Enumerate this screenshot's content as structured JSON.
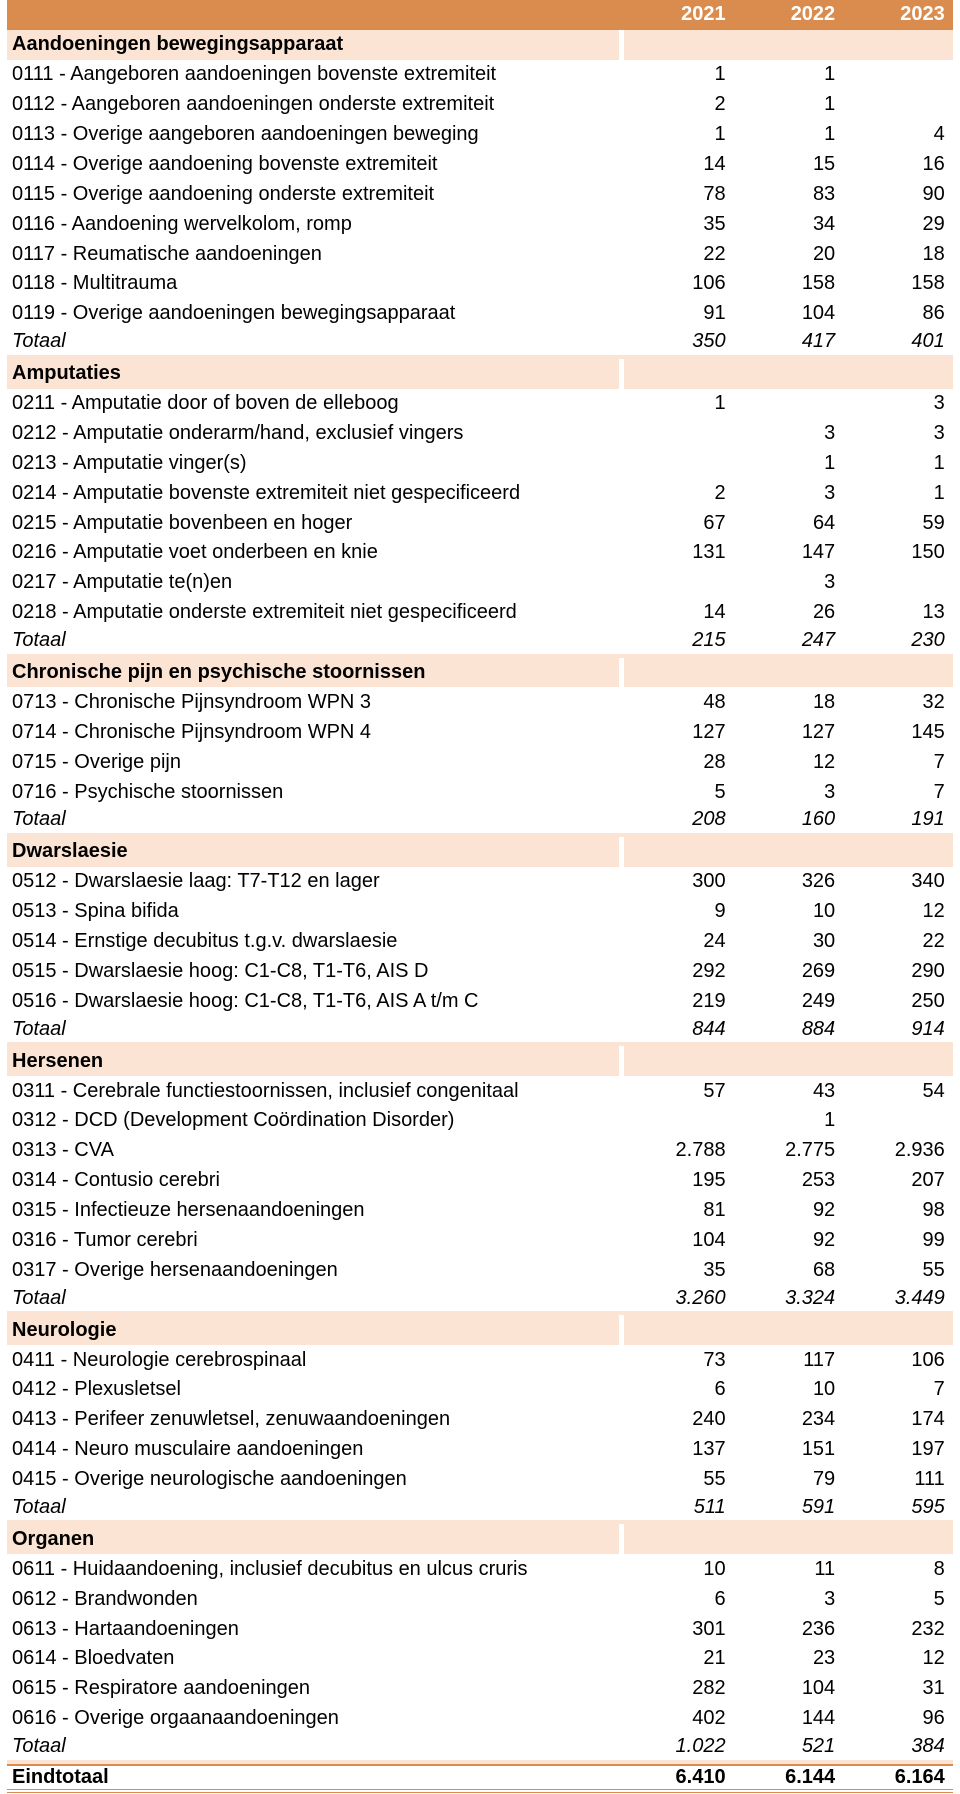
{
  "table": {
    "columns": [
      "2021",
      "2022",
      "2023"
    ],
    "sections": [
      {
        "title": "Aandoeningen bewegingsapparaat",
        "rows": [
          {
            "label": "0111 - Aangeboren aandoeningen bovenste extremiteit",
            "values": [
              "1",
              "1",
              null
            ]
          },
          {
            "label": "0112 - Aangeboren aandoeningen onderste extremiteit",
            "values": [
              "2",
              "1",
              null
            ]
          },
          {
            "label": "0113 - Overige aangeboren aandoeningen beweging",
            "values": [
              "1",
              "1",
              "4"
            ]
          },
          {
            "label": "0114 - Overige aandoening bovenste extremiteit",
            "values": [
              "14",
              "15",
              "16"
            ]
          },
          {
            "label": "0115 - Overige aandoening onderste extremiteit",
            "values": [
              "78",
              "83",
              "90"
            ]
          },
          {
            "label": "0116 - Aandoening wervelkolom, romp",
            "values": [
              "35",
              "34",
              "29"
            ]
          },
          {
            "label": "0117 - Reumatische aandoeningen",
            "values": [
              "22",
              "20",
              "18"
            ]
          },
          {
            "label": "0118 - Multitrauma",
            "values": [
              "106",
              "158",
              "158"
            ]
          },
          {
            "label": "0119 - Overige aandoeningen bewegingsapparaat",
            "values": [
              "91",
              "104",
              "86"
            ]
          }
        ],
        "total": {
          "label": "Totaal",
          "values": [
            "350",
            "417",
            "401"
          ]
        }
      },
      {
        "title": "Amputaties",
        "rows": [
          {
            "label": "0211 - Amputatie door of boven de elleboog",
            "values": [
              "1",
              null,
              "3"
            ]
          },
          {
            "label": "0212 - Amputatie onderarm/hand, exclusief vingers",
            "values": [
              null,
              "3",
              "3"
            ]
          },
          {
            "label": "0213 - Amputatie vinger(s)",
            "values": [
              null,
              "1",
              "1"
            ]
          },
          {
            "label": "0214 - Amputatie bovenste extremiteit niet gespecificeerd",
            "values": [
              "2",
              "3",
              "1"
            ]
          },
          {
            "label": "0215 - Amputatie bovenbeen en hoger",
            "values": [
              "67",
              "64",
              "59"
            ]
          },
          {
            "label": "0216 - Amputatie voet onderbeen en knie",
            "values": [
              "131",
              "147",
              "150"
            ]
          },
          {
            "label": "0217 - Amputatie te(n)en",
            "values": [
              null,
              "3",
              null
            ]
          },
          {
            "label": "0218 - Amputatie onderste extremiteit niet gespecificeerd",
            "values": [
              "14",
              "26",
              "13"
            ]
          }
        ],
        "total": {
          "label": "Totaal",
          "values": [
            "215",
            "247",
            "230"
          ]
        }
      },
      {
        "title": "Chronische pijn en psychische stoornissen",
        "rows": [
          {
            "label": "0713 - Chronische Pijnsyndroom WPN 3",
            "values": [
              "48",
              "18",
              "32"
            ]
          },
          {
            "label": "0714 - Chronische Pijnsyndroom WPN 4",
            "values": [
              "127",
              "127",
              "145"
            ]
          },
          {
            "label": "0715 - Overige pijn",
            "values": [
              "28",
              "12",
              "7"
            ]
          },
          {
            "label": "0716 - Psychische stoornissen",
            "values": [
              "5",
              "3",
              "7"
            ]
          }
        ],
        "total": {
          "label": "Totaal",
          "values": [
            "208",
            "160",
            "191"
          ]
        }
      },
      {
        "title": "Dwarslaesie",
        "rows": [
          {
            "label": "0512 - Dwarslaesie laag: T7-T12 en lager",
            "values": [
              "300",
              "326",
              "340"
            ]
          },
          {
            "label": "0513 - Spina bifida",
            "values": [
              "9",
              "10",
              "12"
            ]
          },
          {
            "label": "0514 - Ernstige decubitus t.g.v. dwarslaesie",
            "values": [
              "24",
              "30",
              "22"
            ]
          },
          {
            "label": "0515 - Dwarslaesie hoog: C1-C8, T1-T6, AIS D",
            "values": [
              "292",
              "269",
              "290"
            ]
          },
          {
            "label": "0516 - Dwarslaesie hoog: C1-C8, T1-T6, AIS A t/m C",
            "values": [
              "219",
              "249",
              "250"
            ]
          }
        ],
        "total": {
          "label": "Totaal",
          "values": [
            "844",
            "884",
            "914"
          ]
        }
      },
      {
        "title": "Hersenen",
        "rows": [
          {
            "label": "0311 - Cerebrale functiestoornissen, inclusief congenitaal",
            "values": [
              "57",
              "43",
              "54"
            ]
          },
          {
            "label": "0312 - DCD (Development Coördination Disorder)",
            "values": [
              null,
              "1",
              null
            ]
          },
          {
            "label": "0313 - CVA",
            "values": [
              "2.788",
              "2.775",
              "2.936"
            ]
          },
          {
            "label": "0314 - Contusio cerebri",
            "values": [
              "195",
              "253",
              "207"
            ]
          },
          {
            "label": "0315 - Infectieuze hersenaandoeningen",
            "values": [
              "81",
              "92",
              "98"
            ]
          },
          {
            "label": "0316 - Tumor cerebri",
            "values": [
              "104",
              "92",
              "99"
            ]
          },
          {
            "label": "0317 - Overige hersenaandoeningen",
            "values": [
              "35",
              "68",
              "55"
            ]
          }
        ],
        "total": {
          "label": "Totaal",
          "values": [
            "3.260",
            "3.324",
            "3.449"
          ]
        }
      },
      {
        "title": "Neurologie",
        "rows": [
          {
            "label": "0411 - Neurologie cerebrospinaal",
            "values": [
              "73",
              "117",
              "106"
            ]
          },
          {
            "label": "0412 - Plexusletsel",
            "values": [
              "6",
              "10",
              "7"
            ]
          },
          {
            "label": "0413 - Perifeer zenuwletsel, zenuwaandoeningen",
            "values": [
              "240",
              "234",
              "174"
            ]
          },
          {
            "label": "0414 - Neuro musculaire aandoeningen",
            "values": [
              "137",
              "151",
              "197"
            ]
          },
          {
            "label": "0415 - Overige neurologische aandoeningen",
            "values": [
              "55",
              "79",
              "111"
            ]
          }
        ],
        "total": {
          "label": "Totaal",
          "values": [
            "511",
            "591",
            "595"
          ]
        }
      },
      {
        "title": "Organen",
        "rows": [
          {
            "label": "0611 - Huidaandoening, inclusief decubitus en ulcus cruris",
            "values": [
              "10",
              "11",
              "8"
            ]
          },
          {
            "label": "0612 - Brandwonden",
            "values": [
              "6",
              "3",
              "5"
            ]
          },
          {
            "label": "0613 - Hartaandoeningen",
            "values": [
              "301",
              "236",
              "232"
            ]
          },
          {
            "label": "0614 - Bloedvaten",
            "values": [
              "21",
              "23",
              "12"
            ]
          },
          {
            "label": "0615 - Respiratore aandoeningen",
            "values": [
              "282",
              "104",
              "31"
            ]
          },
          {
            "label": "0616 - Overige orgaanaandoeningen",
            "values": [
              "402",
              "144",
              "96"
            ]
          }
        ],
        "total": {
          "label": "Totaal",
          "values": [
            "1.022",
            "521",
            "384"
          ]
        }
      }
    ],
    "grand_total": {
      "label": "Eindtotaal",
      "values": [
        "6.410",
        "6.144",
        "6.164"
      ]
    }
  }
}
